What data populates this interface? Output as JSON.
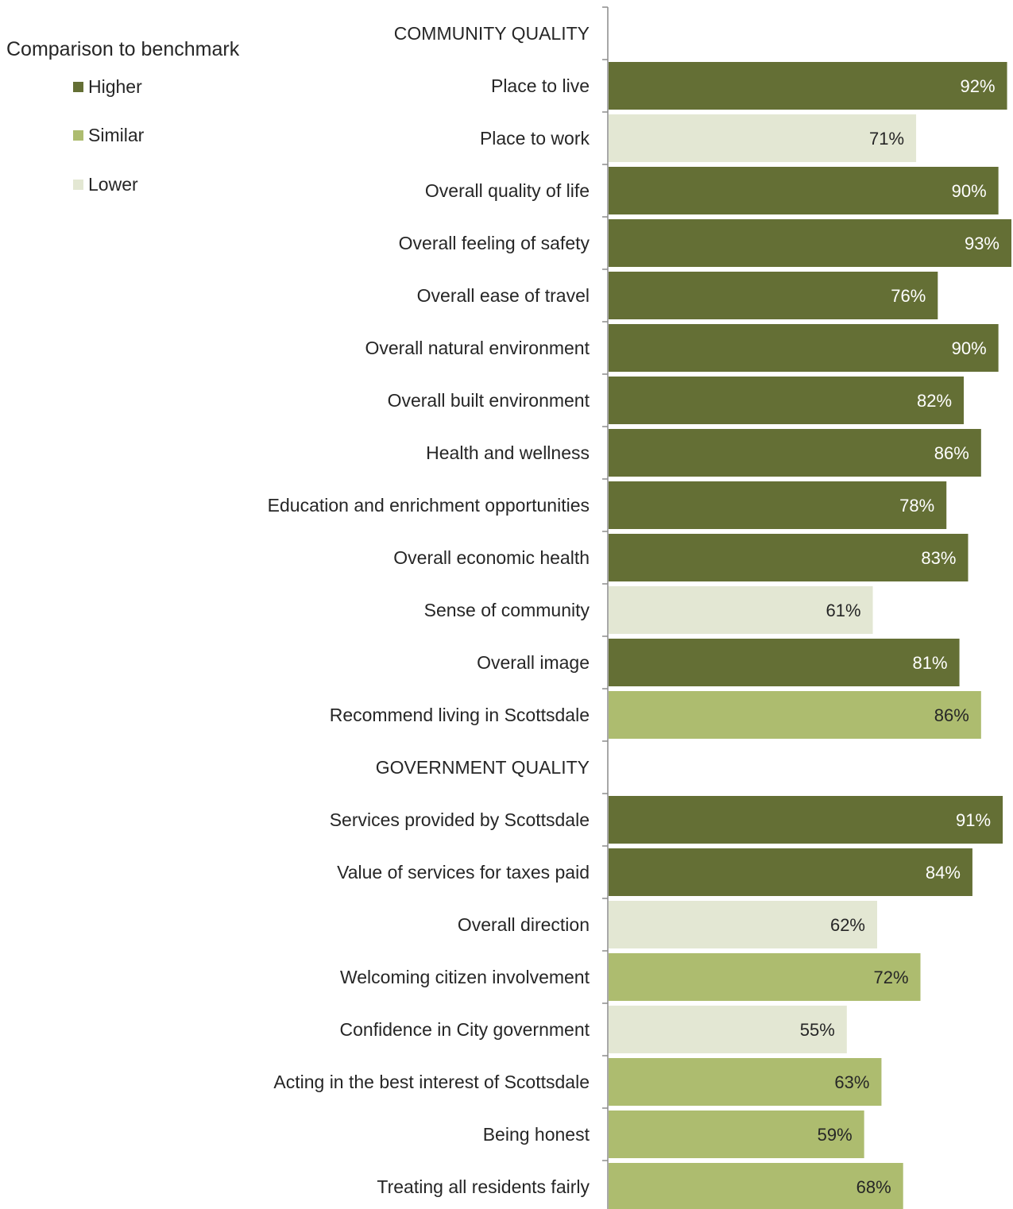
{
  "legend": {
    "title": "Comparison to benchmark",
    "items": [
      {
        "label": "Higher",
        "color": "#646f35"
      },
      {
        "label": "Similar",
        "color": "#adbc6f"
      },
      {
        "label": "Lower",
        "color": "#e3e7d3"
      }
    ]
  },
  "chart_data": {
    "type": "bar",
    "orientation": "horizontal",
    "xlim": [
      0,
      93
    ],
    "value_suffix": "%",
    "rows": [
      {
        "label": "COMMUNITY QUALITY",
        "header": true
      },
      {
        "label": "Place to live",
        "value": 92,
        "comparison": "Higher"
      },
      {
        "label": "Place to work",
        "value": 71,
        "comparison": "Lower"
      },
      {
        "label": "Overall quality of life",
        "value": 90,
        "comparison": "Higher"
      },
      {
        "label": "Overall feeling of safety",
        "value": 93,
        "comparison": "Higher"
      },
      {
        "label": "Overall ease of travel",
        "value": 76,
        "comparison": "Higher"
      },
      {
        "label": "Overall natural environment",
        "value": 90,
        "comparison": "Higher"
      },
      {
        "label": "Overall built environment",
        "value": 82,
        "comparison": "Higher"
      },
      {
        "label": "Health and wellness",
        "value": 86,
        "comparison": "Higher"
      },
      {
        "label": "Education and enrichment opportunities",
        "value": 78,
        "comparison": "Higher"
      },
      {
        "label": "Overall economic health",
        "value": 83,
        "comparison": "Higher"
      },
      {
        "label": "Sense of community",
        "value": 61,
        "comparison": "Lower"
      },
      {
        "label": "Overall image",
        "value": 81,
        "comparison": "Higher"
      },
      {
        "label": "Recommend living in Scottsdale",
        "value": 86,
        "comparison": "Similar"
      },
      {
        "label": "GOVERNMENT QUALITY",
        "header": true
      },
      {
        "label": "Services provided by Scottsdale",
        "value": 91,
        "comparison": "Higher"
      },
      {
        "label": "Value of services for taxes paid",
        "value": 84,
        "comparison": "Higher"
      },
      {
        "label": "Overall direction",
        "value": 62,
        "comparison": "Lower"
      },
      {
        "label": "Welcoming citizen involvement",
        "value": 72,
        "comparison": "Similar"
      },
      {
        "label": "Confidence in City government",
        "value": 55,
        "comparison": "Lower"
      },
      {
        "label": "Acting in the best interest of Scottsdale",
        "value": 63,
        "comparison": "Similar"
      },
      {
        "label": "Being honest",
        "value": 59,
        "comparison": "Similar"
      },
      {
        "label": "Treating all residents fairly",
        "value": 68,
        "comparison": "Similar"
      }
    ]
  }
}
